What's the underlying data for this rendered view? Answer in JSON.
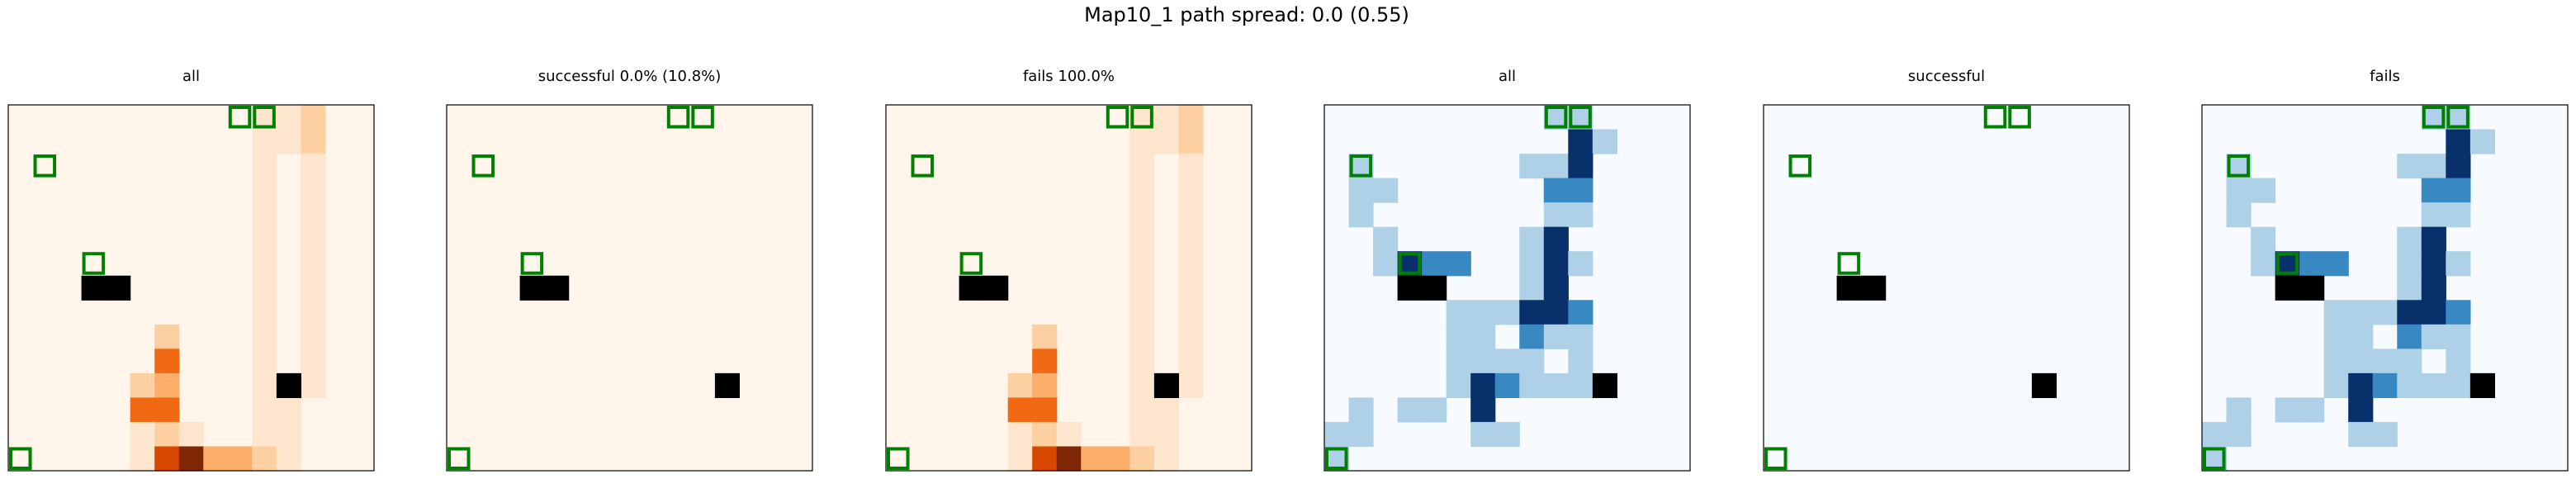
{
  "figure": {
    "title": "Map10_1 path spread: 0.0 (0.55)"
  },
  "palette": {
    "Oranges": [
      "#fff5eb",
      "#fee6ce",
      "#fdd0a2",
      "#fdae6b",
      "#fd8d3c",
      "#f16913",
      "#d94801",
      "#a63603",
      "#7f2704"
    ],
    "Blues": [
      "#f7fbff",
      "#afd1e7",
      "#3888c1",
      "#08306b"
    ],
    "obstacle": "#000000",
    "marker": "#008000"
  },
  "chart_data": [
    {
      "type": "heatmap",
      "title": "all",
      "colormap": "Oranges",
      "grid": false,
      "rows": 15,
      "cols": 15,
      "cells": [
        [
          0,
          10,
          1
        ],
        [
          0,
          11,
          1
        ],
        [
          0,
          12,
          2
        ],
        [
          1,
          10,
          1
        ],
        [
          1,
          11,
          1
        ],
        [
          1,
          12,
          2
        ],
        [
          2,
          10,
          1
        ],
        [
          2,
          12,
          1
        ],
        [
          3,
          10,
          1
        ],
        [
          3,
          12,
          1
        ],
        [
          4,
          10,
          1
        ],
        [
          4,
          12,
          1
        ],
        [
          5,
          10,
          1
        ],
        [
          5,
          12,
          1
        ],
        [
          6,
          10,
          1
        ],
        [
          6,
          12,
          1
        ],
        [
          7,
          10,
          1
        ],
        [
          7,
          12,
          1
        ],
        [
          8,
          10,
          1
        ],
        [
          8,
          12,
          1
        ],
        [
          9,
          10,
          1
        ],
        [
          9,
          12,
          1
        ],
        [
          9,
          6,
          2
        ],
        [
          10,
          6,
          5
        ],
        [
          10,
          10,
          1
        ],
        [
          10,
          12,
          1
        ],
        [
          11,
          5,
          2
        ],
        [
          11,
          6,
          3
        ],
        [
          11,
          10,
          1
        ],
        [
          11,
          11,
          1
        ],
        [
          11,
          12,
          1
        ],
        [
          12,
          5,
          5
        ],
        [
          12,
          6,
          5
        ],
        [
          12,
          10,
          1
        ],
        [
          12,
          11,
          1
        ],
        [
          13,
          5,
          1
        ],
        [
          13,
          6,
          2
        ],
        [
          13,
          7,
          1
        ],
        [
          13,
          10,
          1
        ],
        [
          13,
          11,
          1
        ],
        [
          14,
          5,
          1
        ],
        [
          14,
          6,
          6
        ],
        [
          14,
          7,
          8
        ],
        [
          14,
          8,
          3
        ],
        [
          14,
          9,
          3
        ],
        [
          14,
          10,
          2
        ],
        [
          14,
          11,
          1
        ]
      ],
      "obstacles": [
        [
          7,
          3
        ],
        [
          7,
          4
        ],
        [
          11,
          11
        ]
      ],
      "markers": [
        [
          0,
          9
        ],
        [
          0,
          10
        ],
        [
          2,
          1
        ],
        [
          6,
          3
        ],
        [
          14,
          0
        ]
      ]
    },
    {
      "type": "heatmap",
      "title": "successful 0.0% (10.8%)",
      "colormap": "Oranges",
      "grid": false,
      "rows": 15,
      "cols": 15,
      "cells": [],
      "obstacles": [
        [
          7,
          3
        ],
        [
          7,
          4
        ],
        [
          11,
          11
        ]
      ],
      "markers": [
        [
          0,
          9
        ],
        [
          0,
          10
        ],
        [
          2,
          1
        ],
        [
          6,
          3
        ],
        [
          14,
          0
        ]
      ]
    },
    {
      "type": "heatmap",
      "title": "fails 100.0%",
      "colormap": "Oranges",
      "grid": false,
      "rows": 15,
      "cols": 15,
      "cells": [
        [
          0,
          10,
          1
        ],
        [
          0,
          11,
          1
        ],
        [
          0,
          12,
          2
        ],
        [
          1,
          10,
          1
        ],
        [
          1,
          11,
          1
        ],
        [
          1,
          12,
          2
        ],
        [
          2,
          10,
          1
        ],
        [
          2,
          12,
          1
        ],
        [
          3,
          10,
          1
        ],
        [
          3,
          12,
          1
        ],
        [
          4,
          10,
          1
        ],
        [
          4,
          12,
          1
        ],
        [
          5,
          10,
          1
        ],
        [
          5,
          12,
          1
        ],
        [
          6,
          10,
          1
        ],
        [
          6,
          12,
          1
        ],
        [
          7,
          10,
          1
        ],
        [
          7,
          12,
          1
        ],
        [
          8,
          10,
          1
        ],
        [
          8,
          12,
          1
        ],
        [
          9,
          10,
          1
        ],
        [
          9,
          12,
          1
        ],
        [
          9,
          6,
          2
        ],
        [
          10,
          6,
          5
        ],
        [
          10,
          10,
          1
        ],
        [
          10,
          12,
          1
        ],
        [
          11,
          5,
          2
        ],
        [
          11,
          6,
          3
        ],
        [
          11,
          10,
          1
        ],
        [
          11,
          11,
          1
        ],
        [
          11,
          12,
          1
        ],
        [
          12,
          5,
          5
        ],
        [
          12,
          6,
          5
        ],
        [
          12,
          10,
          1
        ],
        [
          12,
          11,
          1
        ],
        [
          13,
          5,
          1
        ],
        [
          13,
          6,
          2
        ],
        [
          13,
          7,
          1
        ],
        [
          13,
          10,
          1
        ],
        [
          13,
          11,
          1
        ],
        [
          14,
          5,
          1
        ],
        [
          14,
          6,
          6
        ],
        [
          14,
          7,
          8
        ],
        [
          14,
          8,
          3
        ],
        [
          14,
          9,
          3
        ],
        [
          14,
          10,
          2
        ],
        [
          14,
          11,
          1
        ]
      ],
      "obstacles": [
        [
          7,
          3
        ],
        [
          7,
          4
        ],
        [
          11,
          11
        ]
      ],
      "markers": [
        [
          0,
          9
        ],
        [
          0,
          10
        ],
        [
          2,
          1
        ],
        [
          6,
          3
        ],
        [
          14,
          0
        ]
      ]
    },
    {
      "type": "heatmap",
      "title": "all",
      "colormap": "Blues",
      "grid": false,
      "rows": 15,
      "cols": 15,
      "cells": [
        [
          0,
          9,
          1
        ],
        [
          0,
          10,
          1
        ],
        [
          1,
          10,
          3
        ],
        [
          1,
          11,
          1
        ],
        [
          2,
          1,
          1
        ],
        [
          2,
          8,
          1
        ],
        [
          2,
          9,
          1
        ],
        [
          2,
          10,
          3
        ],
        [
          3,
          1,
          1
        ],
        [
          3,
          2,
          1
        ],
        [
          3,
          9,
          2
        ],
        [
          3,
          10,
          2
        ],
        [
          4,
          1,
          1
        ],
        [
          4,
          9,
          1
        ],
        [
          4,
          10,
          1
        ],
        [
          5,
          2,
          1
        ],
        [
          5,
          8,
          1
        ],
        [
          5,
          9,
          3
        ],
        [
          6,
          2,
          1
        ],
        [
          6,
          3,
          3
        ],
        [
          6,
          4,
          2
        ],
        [
          6,
          5,
          2
        ],
        [
          6,
          8,
          1
        ],
        [
          6,
          9,
          3
        ],
        [
          6,
          10,
          1
        ],
        [
          7,
          8,
          1
        ],
        [
          7,
          9,
          3
        ],
        [
          8,
          5,
          1
        ],
        [
          8,
          6,
          1
        ],
        [
          8,
          7,
          1
        ],
        [
          8,
          8,
          3
        ],
        [
          8,
          9,
          3
        ],
        [
          8,
          10,
          2
        ],
        [
          9,
          5,
          1
        ],
        [
          9,
          6,
          1
        ],
        [
          9,
          8,
          2
        ],
        [
          9,
          9,
          1
        ],
        [
          9,
          10,
          1
        ],
        [
          10,
          5,
          1
        ],
        [
          10,
          6,
          1
        ],
        [
          10,
          7,
          1
        ],
        [
          10,
          8,
          1
        ],
        [
          10,
          10,
          1
        ],
        [
          11,
          5,
          1
        ],
        [
          11,
          6,
          3
        ],
        [
          11,
          7,
          2
        ],
        [
          11,
          8,
          1
        ],
        [
          11,
          9,
          1
        ],
        [
          11,
          10,
          1
        ],
        [
          12,
          1,
          1
        ],
        [
          12,
          3,
          1
        ],
        [
          12,
          4,
          1
        ],
        [
          12,
          6,
          3
        ],
        [
          13,
          0,
          1
        ],
        [
          13,
          1,
          1
        ],
        [
          13,
          6,
          1
        ],
        [
          13,
          7,
          1
        ],
        [
          14,
          0,
          1
        ]
      ],
      "obstacles": [
        [
          7,
          3
        ],
        [
          7,
          4
        ],
        [
          11,
          11
        ]
      ],
      "markers": [
        [
          0,
          9
        ],
        [
          0,
          10
        ],
        [
          2,
          1
        ],
        [
          6,
          3
        ],
        [
          14,
          0
        ]
      ]
    },
    {
      "type": "heatmap",
      "title": "successful",
      "colormap": "Blues",
      "grid": false,
      "rows": 15,
      "cols": 15,
      "cells": [],
      "obstacles": [
        [
          7,
          3
        ],
        [
          7,
          4
        ],
        [
          11,
          11
        ]
      ],
      "markers": [
        [
          0,
          9
        ],
        [
          0,
          10
        ],
        [
          2,
          1
        ],
        [
          6,
          3
        ],
        [
          14,
          0
        ]
      ]
    },
    {
      "type": "heatmap",
      "title": "fails",
      "colormap": "Blues",
      "grid": false,
      "rows": 15,
      "cols": 15,
      "cells": [
        [
          0,
          9,
          1
        ],
        [
          0,
          10,
          1
        ],
        [
          1,
          10,
          3
        ],
        [
          1,
          11,
          1
        ],
        [
          2,
          1,
          1
        ],
        [
          2,
          8,
          1
        ],
        [
          2,
          9,
          1
        ],
        [
          2,
          10,
          3
        ],
        [
          3,
          1,
          1
        ],
        [
          3,
          2,
          1
        ],
        [
          3,
          9,
          2
        ],
        [
          3,
          10,
          2
        ],
        [
          4,
          1,
          1
        ],
        [
          4,
          9,
          1
        ],
        [
          4,
          10,
          1
        ],
        [
          5,
          2,
          1
        ],
        [
          5,
          8,
          1
        ],
        [
          5,
          9,
          3
        ],
        [
          6,
          2,
          1
        ],
        [
          6,
          3,
          3
        ],
        [
          6,
          4,
          2
        ],
        [
          6,
          5,
          2
        ],
        [
          6,
          8,
          1
        ],
        [
          6,
          9,
          3
        ],
        [
          6,
          10,
          1
        ],
        [
          7,
          8,
          1
        ],
        [
          7,
          9,
          3
        ],
        [
          8,
          5,
          1
        ],
        [
          8,
          6,
          1
        ],
        [
          8,
          7,
          1
        ],
        [
          8,
          8,
          3
        ],
        [
          8,
          9,
          3
        ],
        [
          8,
          10,
          2
        ],
        [
          9,
          5,
          1
        ],
        [
          9,
          6,
          1
        ],
        [
          9,
          8,
          2
        ],
        [
          9,
          9,
          1
        ],
        [
          9,
          10,
          1
        ],
        [
          10,
          5,
          1
        ],
        [
          10,
          6,
          1
        ],
        [
          10,
          7,
          1
        ],
        [
          10,
          8,
          1
        ],
        [
          10,
          10,
          1
        ],
        [
          11,
          5,
          1
        ],
        [
          11,
          6,
          3
        ],
        [
          11,
          7,
          2
        ],
        [
          11,
          8,
          1
        ],
        [
          11,
          9,
          1
        ],
        [
          11,
          10,
          1
        ],
        [
          12,
          1,
          1
        ],
        [
          12,
          3,
          1
        ],
        [
          12,
          4,
          1
        ],
        [
          12,
          6,
          3
        ],
        [
          13,
          0,
          1
        ],
        [
          13,
          1,
          1
        ],
        [
          13,
          6,
          1
        ],
        [
          13,
          7,
          1
        ],
        [
          14,
          0,
          1
        ]
      ],
      "obstacles": [
        [
          7,
          3
        ],
        [
          7,
          4
        ],
        [
          11,
          11
        ]
      ],
      "markers": [
        [
          0,
          9
        ],
        [
          0,
          10
        ],
        [
          2,
          1
        ],
        [
          6,
          3
        ],
        [
          14,
          0
        ]
      ]
    }
  ]
}
